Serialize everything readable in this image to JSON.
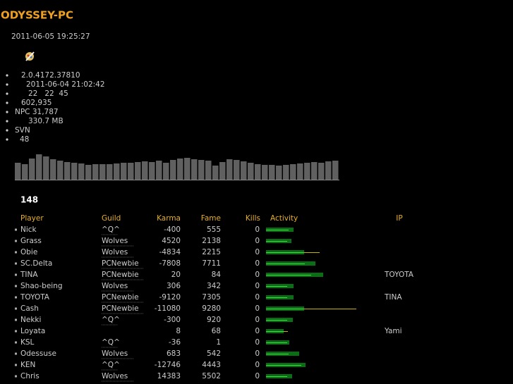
{
  "header": {
    "title": "ODYSSEY-PC",
    "timestamp": "2011-06-05 19:25:27"
  },
  "info": [
    "2.0.4172.37810",
    "2011-06-04 21:02:42",
    "22   22  45",
    "602,935",
    "NPC 31,787",
    "330.7 MB",
    "SVN",
    "48"
  ],
  "history": {
    "type": "bar",
    "values": [
      24,
      22,
      30,
      36,
      33,
      29,
      27,
      25,
      24,
      23,
      21,
      22,
      22,
      22,
      23,
      24,
      24,
      25,
      26,
      25,
      27,
      24,
      28,
      30,
      31,
      29,
      28,
      27,
      20,
      25,
      29,
      28,
      26,
      24,
      22,
      21,
      21,
      20,
      21,
      22,
      23,
      24,
      25,
      24,
      26,
      27
    ]
  },
  "count": "148",
  "table": {
    "columns": [
      "Player",
      "Guild",
      "Karma",
      "Fame",
      "Kills",
      "Activity",
      "IP"
    ],
    "rows": [
      {
        "player": "Nick",
        "guild": "^Q^",
        "karma": -400,
        "fame": 555,
        "kills": 0,
        "activity": [
          39,
          32
        ],
        "overflow": null,
        "ip": null
      },
      {
        "player": "Grass",
        "guild": "Wolves",
        "karma": 4520,
        "fame": 2138,
        "kills": 0,
        "activity": [
          36,
          30
        ],
        "overflow": null,
        "ip": null
      },
      {
        "player": "Obie",
        "guild": "Wolves",
        "karma": -4834,
        "fame": 2215,
        "kills": 0,
        "activity": [
          54,
          54
        ],
        "overflow": 76,
        "ip": null
      },
      {
        "player": "SC.Delta",
        "guild": "PCNewbie",
        "karma": -7808,
        "fame": 7711,
        "kills": 0,
        "activity": [
          70,
          55
        ],
        "overflow": null,
        "ip": null
      },
      {
        "player": "TINA",
        "guild": "PCNewbie",
        "karma": 20,
        "fame": 84,
        "kills": 0,
        "activity": [
          81,
          64
        ],
        "overflow": null,
        "ip": "TOYOTA"
      },
      {
        "player": "Shao-being",
        "guild": "Wolves",
        "karma": 306,
        "fame": 342,
        "kills": 0,
        "activity": [
          39,
          30
        ],
        "overflow": null,
        "ip": null
      },
      {
        "player": "TOYOTA",
        "guild": "PCNewbie",
        "karma": -9120,
        "fame": 7305,
        "kills": 0,
        "activity": [
          39,
          30
        ],
        "overflow": null,
        "ip": "TINA"
      },
      {
        "player": "Cash",
        "guild": "PCNewbie",
        "karma": -11080,
        "fame": 9280,
        "kills": 0,
        "activity": [
          54,
          54
        ],
        "overflow": 128,
        "ip": null
      },
      {
        "player": "Nekki",
        "guild": "^Q^",
        "karma": -300,
        "fame": 920,
        "kills": 0,
        "activity": [
          38,
          30
        ],
        "overflow": null,
        "ip": null
      },
      {
        "player": "Loyata",
        "guild": null,
        "karma": 8,
        "fame": 68,
        "kills": 0,
        "activity": [
          25,
          25
        ],
        "overflow": 31,
        "ip": "Yami"
      },
      {
        "player": "KSL",
        "guild": "^Q^",
        "karma": -36,
        "fame": 1,
        "kills": 0,
        "activity": [
          33,
          30
        ],
        "overflow": null,
        "ip": null
      },
      {
        "player": "Odessuse",
        "guild": "Wolves",
        "karma": 683,
        "fame": 542,
        "kills": 0,
        "activity": [
          47,
          32
        ],
        "overflow": null,
        "ip": null
      },
      {
        "player": "KEN",
        "guild": "^Q^",
        "karma": -12746,
        "fame": 4443,
        "kills": 0,
        "activity": [
          56,
          50
        ],
        "overflow": null,
        "ip": null
      },
      {
        "player": "Chris",
        "guild": "Wolves",
        "karma": 14383,
        "fame": 5502,
        "kills": 0,
        "activity": [
          37,
          30
        ],
        "overflow": null,
        "ip": null
      }
    ]
  }
}
